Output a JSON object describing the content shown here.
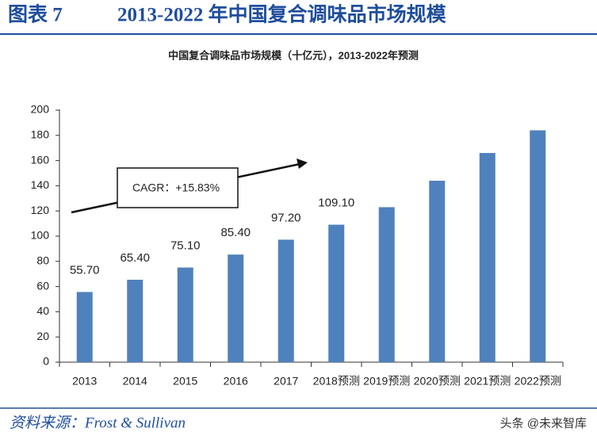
{
  "header": {
    "label": "图表 7",
    "title": "2013-2022 年中国复合调味品市场规模"
  },
  "chart_data": {
    "type": "bar",
    "title": "中国复合调味品市场规模（十亿元），2013-2022年预测",
    "categories": [
      "2013",
      "2014",
      "2015",
      "2016",
      "2017",
      "2018预测",
      "2019预测",
      "2020预测",
      "2021预测",
      "2022预测"
    ],
    "values": [
      55.7,
      65.4,
      75.1,
      85.4,
      97.2,
      109.1,
      123,
      144,
      166,
      184
    ],
    "value_labels": [
      "55.70",
      "65.40",
      "75.10",
      "85.40",
      "97.20",
      "109.10",
      null,
      null,
      null,
      null
    ],
    "color": "#4f81bd",
    "ylim": [
      0,
      200
    ],
    "yticks": [
      0,
      20,
      40,
      60,
      80,
      100,
      120,
      140,
      160,
      180,
      200
    ],
    "grid": false,
    "annotation": "CAGR：+15.83%"
  },
  "footer": {
    "source": "资料来源：Frost & Sullivan",
    "watermark": "头条 @未来智库"
  }
}
